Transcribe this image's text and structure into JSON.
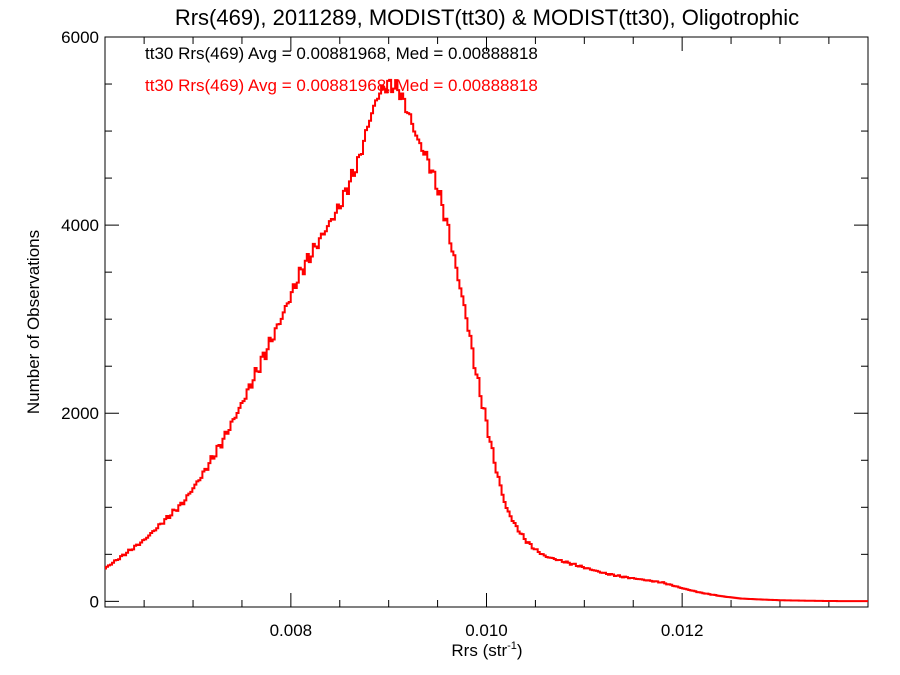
{
  "chart_data": {
    "type": "line",
    "title": "Rrs(469), 2011289, MODIST(tt30) & MODIST(tt30), Oligotrophic",
    "xlabel_main": "Rrs (str",
    "xlabel_sup": "-1",
    "xlabel_close": ")",
    "ylabel": "Number of Observations",
    "xlim": [
      0.0061,
      0.0139
    ],
    "ylim": [
      -60,
      6000
    ],
    "x_ticks": [
      {
        "value": 0.008,
        "label": "0.008"
      },
      {
        "value": 0.01,
        "label": "0.010"
      },
      {
        "value": 0.012,
        "label": "0.012"
      }
    ],
    "x_minor_ticks": [
      0.0065,
      0.007,
      0.0075,
      0.0085,
      0.009,
      0.0095,
      0.0105,
      0.011,
      0.0115,
      0.0125,
      0.013,
      0.0135
    ],
    "y_ticks": [
      {
        "value": 0,
        "label": "0"
      },
      {
        "value": 2000,
        "label": "2000"
      },
      {
        "value": 4000,
        "label": "4000"
      },
      {
        "value": 6000,
        "label": "6000"
      }
    ],
    "y_minor_ticks": [
      500,
      1000,
      1500,
      2500,
      3000,
      3500,
      4500,
      5000,
      5500
    ],
    "annotations": [
      {
        "text": "tt30 Rrs(469) Avg = 0.00881968, Med = 0.00888818",
        "color": "#000000"
      },
      {
        "text": "tt30 Rrs(469) Avg = 0.00881968, Med = 0.00888818",
        "color": "#ff0000"
      }
    ],
    "series": [
      {
        "color": "#ff0000",
        "step": true,
        "x": [
          0.0061,
          0.0063,
          0.0065,
          0.0067,
          0.0069,
          0.0071,
          0.0073,
          0.0075,
          0.0077,
          0.0079,
          0.0081,
          0.0083,
          0.0085,
          0.0087,
          0.0088,
          0.0089,
          0.009,
          0.0091,
          0.0092,
          0.0093,
          0.0094,
          0.0095,
          0.0096,
          0.0097,
          0.0098,
          0.0099,
          0.01,
          0.0101,
          0.0102,
          0.0103,
          0.0104,
          0.0105,
          0.0106,
          0.0108,
          0.011,
          0.0112,
          0.0114,
          0.0116,
          0.0118,
          0.012,
          0.0122,
          0.0124,
          0.0126,
          0.0128,
          0.013,
          0.0132,
          0.0134,
          0.0136,
          0.0138,
          0.0139
        ],
        "y": [
          350,
          500,
          650,
          850,
          1050,
          1350,
          1700,
          2100,
          2550,
          3000,
          3500,
          3850,
          4200,
          4700,
          5100,
          5400,
          5500,
          5450,
          5200,
          4900,
          4700,
          4400,
          4000,
          3500,
          3000,
          2400,
          1900,
          1400,
          1000,
          800,
          650,
          550,
          480,
          420,
          360,
          300,
          260,
          230,
          200,
          140,
          90,
          55,
          30,
          20,
          12,
          8,
          5,
          3,
          2,
          2
        ]
      }
    ]
  }
}
